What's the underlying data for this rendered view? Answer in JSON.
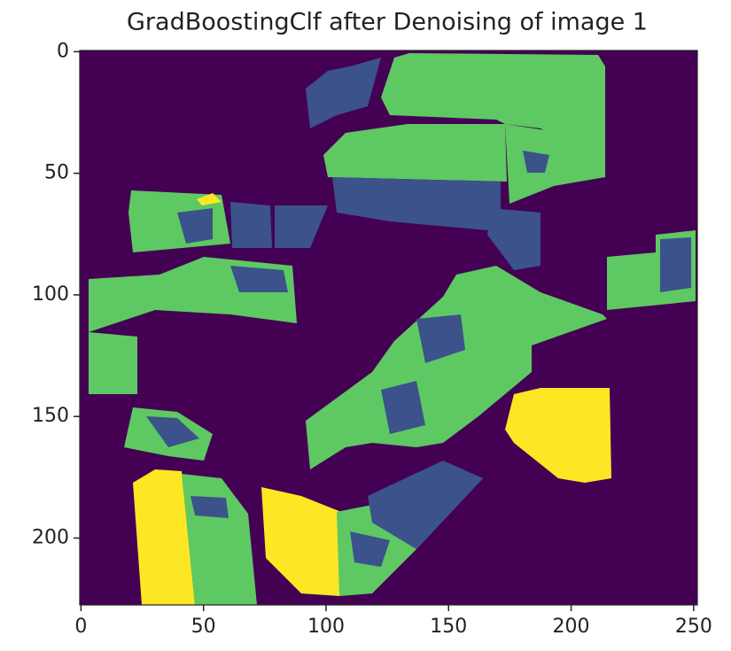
{
  "chart_data": {
    "type": "image",
    "title": "GradBoostingClf after Denoising of image 1",
    "xlim": [
      -0.5,
      251.5
    ],
    "ylim": [
      227.5,
      -0.5
    ],
    "xticks": [
      0,
      50,
      100,
      150,
      200,
      250
    ],
    "yticks": [
      0,
      50,
      100,
      150,
      200
    ],
    "colors": [
      "#440154",
      "#3b528b",
      "#5ec962",
      "#fde725"
    ]
  }
}
